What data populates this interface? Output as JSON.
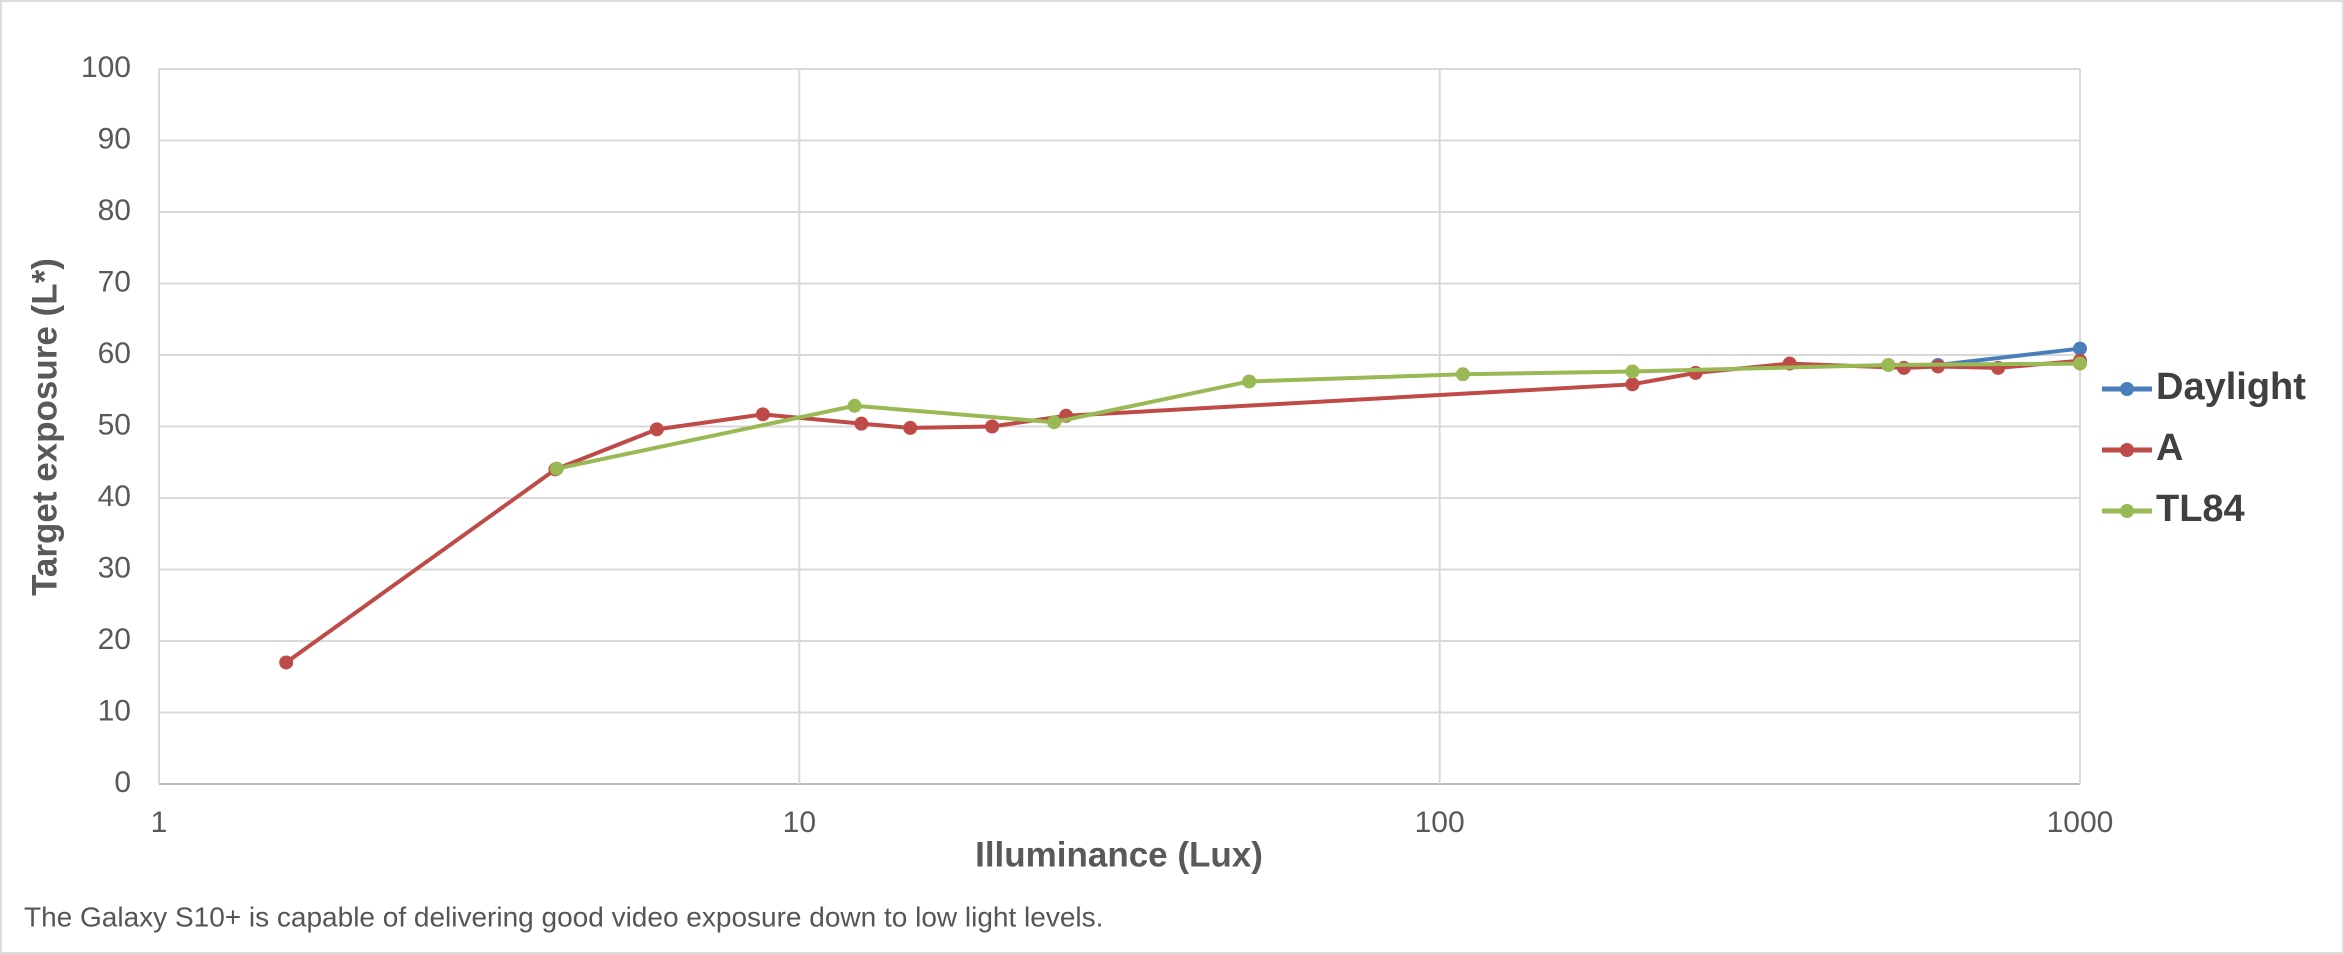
{
  "chart_data": {
    "type": "line",
    "x_label": "Illuminance (Lux)",
    "y_label": "Target exposure (L*)",
    "caption": "The Galaxy S10+ is capable of delivering good video exposure down to low light levels.",
    "xscale": "log",
    "xlim": [
      1,
      1000
    ],
    "xticks": [
      1,
      10,
      100,
      1000
    ],
    "ylim": [
      0,
      100
    ],
    "yticks": [
      0,
      10,
      20,
      30,
      40,
      50,
      60,
      70,
      80,
      90,
      100
    ],
    "grid": true,
    "legend": "right",
    "series": [
      {
        "name": "Daylight",
        "color": "#4a7ebb",
        "x": [
          600,
          1000
        ],
        "values": [
          58.6,
          60.9
        ]
      },
      {
        "name": "A",
        "color": "#be4b48",
        "x": [
          1.58,
          4.16,
          5.99,
          8.77,
          12.5,
          14.9,
          20,
          26.1,
          200,
          251,
          352,
          531,
          600,
          745,
          1000
        ],
        "values": [
          17,
          44,
          49.6,
          51.7,
          50.4,
          49.8,
          50,
          51.5,
          55.9,
          57.5,
          58.8,
          58.2,
          58.4,
          58.2,
          59.2
        ]
      },
      {
        "name": "TL84",
        "color": "#98b954",
        "x": [
          4.18,
          12.2,
          25,
          50.4,
          108.7,
          200,
          502,
          1000
        ],
        "values": [
          44.1,
          52.9,
          50.6,
          56.3,
          57.3,
          57.7,
          58.6,
          58.8
        ]
      }
    ]
  }
}
